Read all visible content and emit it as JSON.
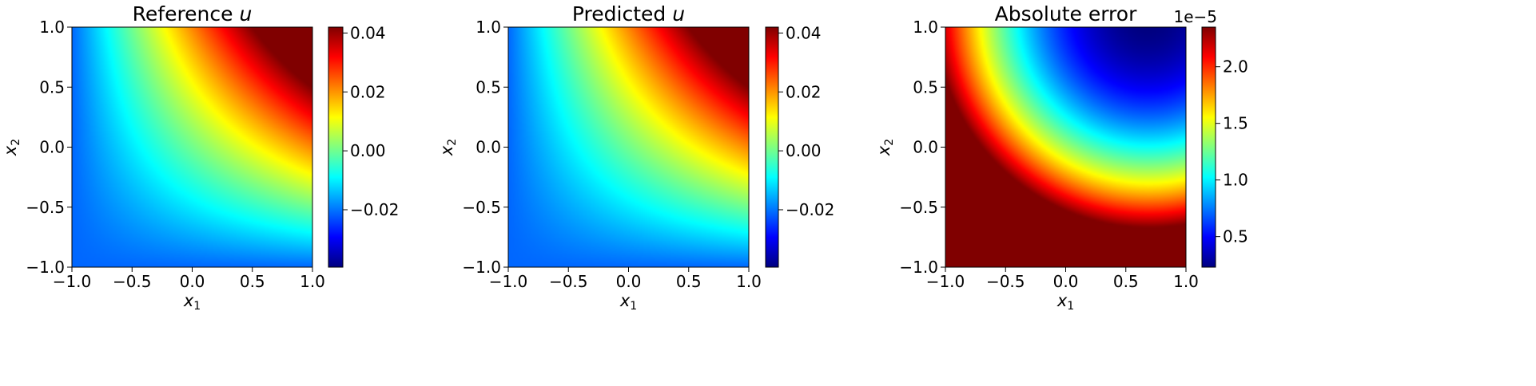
{
  "chart_data": [
    {
      "type": "heatmap",
      "title": "Reference ",
      "title_var": "u",
      "xlabel": "x",
      "xlabel_sub": "1",
      "ylabel": "x",
      "ylabel_sub": "2",
      "xlim": [
        -1.0,
        1.0
      ],
      "ylim": [
        -1.0,
        1.0
      ],
      "xticks": [
        "−1.0",
        "−0.5",
        "0.0",
        "0.5",
        "1.0"
      ],
      "yticks": [
        "−1.0",
        "−0.5",
        "0.0",
        "0.5",
        "1.0"
      ],
      "colormap": "jet",
      "field": "0.0211*(x1+x2+x1*x2)",
      "colorbar": {
        "range": [
          -0.0395,
          0.042
        ],
        "ticks": [
          {
            "value": -0.02,
            "label": "−0.02"
          },
          {
            "value": 0.0,
            "label": "0.00"
          },
          {
            "value": 0.02,
            "label": "0.02"
          },
          {
            "value": 0.04,
            "label": "0.04"
          }
        ],
        "offset_label": ""
      }
    },
    {
      "type": "heatmap",
      "title": "Predicted ",
      "title_var": "u",
      "xlabel": "x",
      "xlabel_sub": "1",
      "ylabel": "x",
      "ylabel_sub": "2",
      "xlim": [
        -1.0,
        1.0
      ],
      "ylim": [
        -1.0,
        1.0
      ],
      "xticks": [
        "−1.0",
        "−0.5",
        "0.0",
        "0.5",
        "1.0"
      ],
      "yticks": [
        "−1.0",
        "−0.5",
        "0.0",
        "0.5",
        "1.0"
      ],
      "colormap": "jet",
      "field": "0.0211*(x1+x2+x1*x2)",
      "colorbar": {
        "range": [
          -0.0395,
          0.042
        ],
        "ticks": [
          {
            "value": -0.02,
            "label": "−0.02"
          },
          {
            "value": 0.0,
            "label": "0.00"
          },
          {
            "value": 0.02,
            "label": "0.02"
          },
          {
            "value": 0.04,
            "label": "0.04"
          }
        ],
        "offset_label": ""
      }
    },
    {
      "type": "heatmap",
      "title": "Absolute error",
      "title_var": "",
      "xlabel": "x",
      "xlabel_sub": "1",
      "ylabel": "x",
      "ylabel_sub": "2",
      "xlim": [
        -1.0,
        1.0
      ],
      "ylim": [
        -1.0,
        1.0
      ],
      "xticks": [
        "−1.0",
        "−0.5",
        "0.0",
        "0.5",
        "1.0"
      ],
      "yticks": [
        "−1.0",
        "−0.5",
        "0.0",
        "0.5",
        "1.0"
      ],
      "colormap": "jet",
      "field": "error",
      "colorbar": {
        "range": [
          0.23,
          2.35
        ],
        "ticks": [
          {
            "value": 0.5,
            "label": "0.5"
          },
          {
            "value": 1.0,
            "label": "1.0"
          },
          {
            "value": 1.5,
            "label": "1.5"
          },
          {
            "value": 2.0,
            "label": "2.0"
          }
        ],
        "offset_label": "1e−5"
      }
    }
  ]
}
